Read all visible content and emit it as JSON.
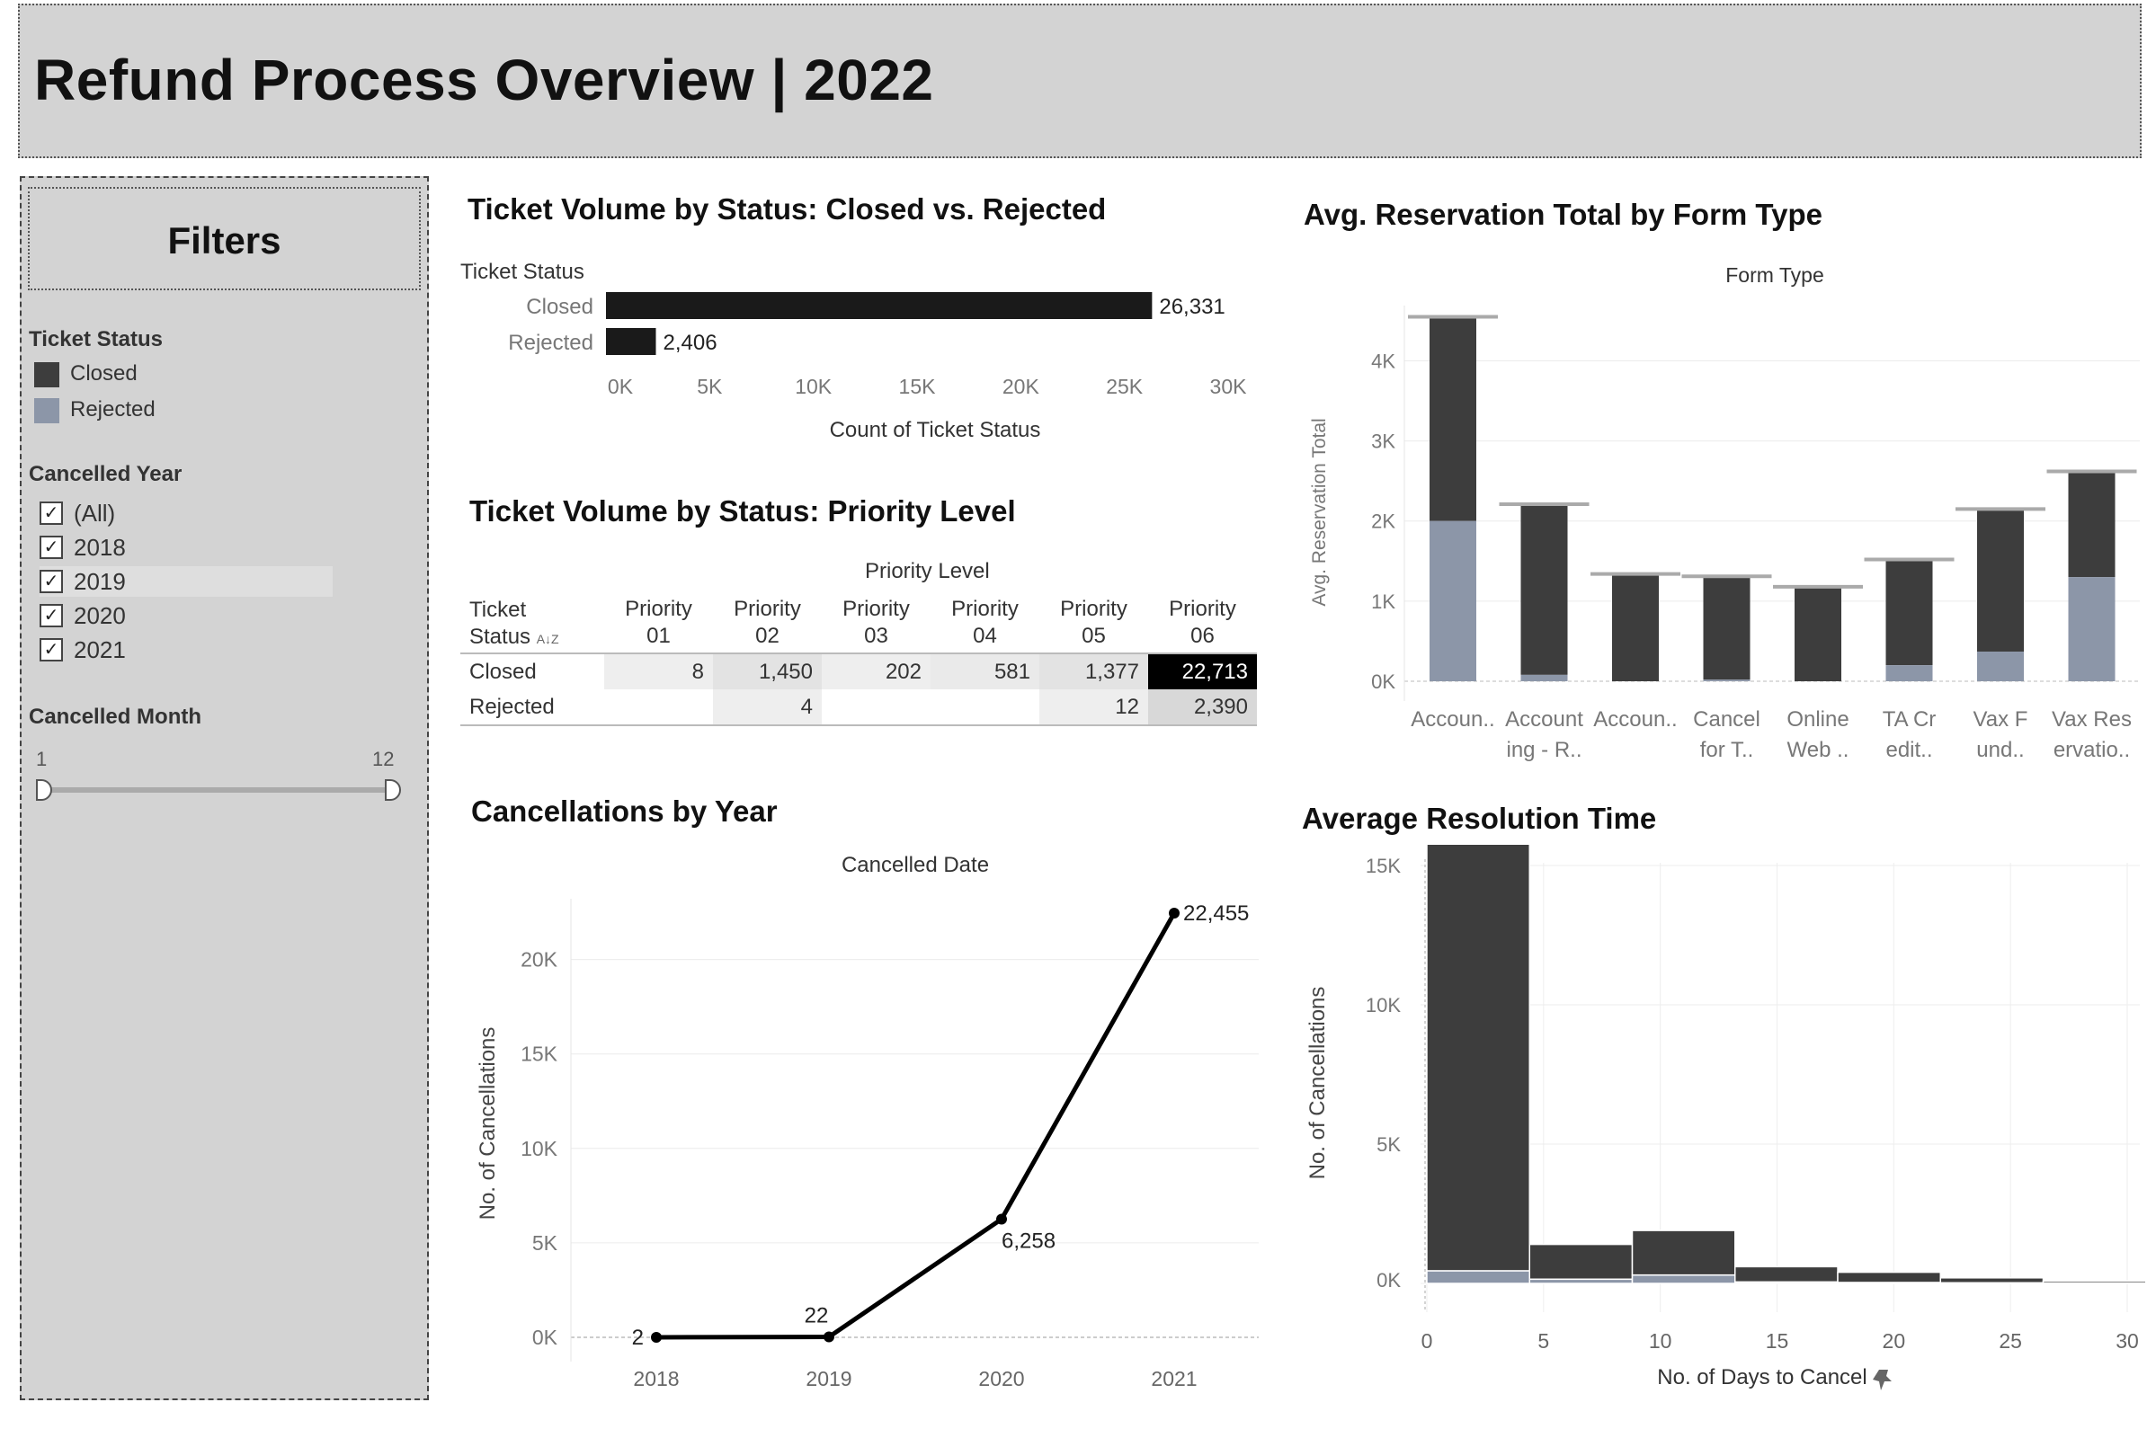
{
  "header": {
    "title": "Refund Process Overview | 2022"
  },
  "filters": {
    "title": "Filters",
    "ticket_status_label": "Ticket Status",
    "legend": [
      {
        "label": "Closed",
        "color": "#3d3d3d"
      },
      {
        "label": "Rejected",
        "color": "#8c96a8"
      }
    ],
    "cancelled_year_label": "Cancelled Year",
    "years": [
      "(All)",
      "2018",
      "2019",
      "2020",
      "2021"
    ],
    "cancelled_month_label": "Cancelled Month",
    "month_min": "1",
    "month_max": "12"
  },
  "sheets": {
    "status_bar_title": "Ticket Volume by Status: Closed vs. Rejected",
    "priority_title": "Ticket Volume by Status: Priority Level",
    "year_title": "Cancellations by Year",
    "form_title": "Avg. Reservation Total by Form Type",
    "resolution_title": "Average Resolution Time"
  },
  "priority_table": {
    "col_header": "Priority Level",
    "row_header": [
      "Ticket",
      "Status"
    ],
    "columns": [
      [
        "Priority",
        "01"
      ],
      [
        "Priority",
        "02"
      ],
      [
        "Priority",
        "03"
      ],
      [
        "Priority",
        "04"
      ],
      [
        "Priority",
        "05"
      ],
      [
        "Priority",
        "06"
      ]
    ],
    "rows": [
      {
        "label": "Closed",
        "values": [
          "8",
          "1,450",
          "202",
          "581",
          "1,377",
          "22,713"
        ]
      },
      {
        "label": "Rejected",
        "values": [
          "",
          "4",
          "",
          "",
          "12",
          "2,390"
        ]
      }
    ]
  },
  "chart_data": [
    {
      "type": "bar",
      "orientation": "horizontal",
      "title": "Ticket Volume by Status: Closed vs. Rejected",
      "ylabel": "Ticket Status",
      "xlabel": "Count of Ticket Status",
      "categories": [
        "Closed",
        "Rejected"
      ],
      "values": [
        26331,
        2406
      ],
      "labels": [
        "26,331",
        "2,406"
      ],
      "xlim": [
        0,
        30000
      ],
      "xticks": [
        "0K",
        "5K",
        "10K",
        "15K",
        "20K",
        "25K",
        "30K"
      ],
      "color": "#1a1a1a"
    },
    {
      "type": "line",
      "title": "Cancellations by Year",
      "header": "Cancelled Date",
      "ylabel": "No. of Cancellations",
      "x": [
        "2018",
        "2019",
        "2020",
        "2021"
      ],
      "y": [
        2,
        22,
        6258,
        22455
      ],
      "labels": [
        "2",
        "22",
        "6,258",
        "22,455"
      ],
      "ylim": [
        0,
        22455
      ],
      "yticks": [
        "0K",
        "5K",
        "10K",
        "15K",
        "20K"
      ]
    },
    {
      "type": "bar",
      "stacked": true,
      "title": "Avg. Reservation Total by Form Type",
      "header": "Form Type",
      "ylabel": "Avg. Reservation Total",
      "categories": [
        [
          "Accoun.."
        ],
        [
          "Account",
          "ing - R.."
        ],
        [
          "Accoun.."
        ],
        [
          "Cancel",
          "for T.."
        ],
        [
          "Online",
          "Web .."
        ],
        [
          "TA Cr",
          "edit.."
        ],
        [
          "Vax F",
          "und.."
        ],
        [
          "Vax Res",
          "ervatio.."
        ]
      ],
      "series": [
        {
          "name": "Rejected",
          "values": [
            2000,
            80,
            0,
            20,
            0,
            200,
            370,
            1300
          ]
        },
        {
          "name": "Closed",
          "values": [
            2550,
            2130,
            1340,
            1290,
            1180,
            1320,
            1780,
            1320
          ]
        }
      ],
      "reference": [
        4550,
        2210,
        1340,
        1310,
        1180,
        1520,
        2150,
        2620
      ],
      "ylim": [
        0,
        4600
      ],
      "yticks": [
        "0K",
        "1K",
        "2K",
        "3K",
        "4K"
      ]
    },
    {
      "type": "bar",
      "stacked": true,
      "histogram": true,
      "title": "Average Resolution Time",
      "ylabel": "No. of Cancellations",
      "xlabel": "No. of Days to Cancel",
      "bins": [
        [
          0,
          4.4
        ],
        [
          4.4,
          8.8
        ],
        [
          8.8,
          13.2
        ],
        [
          13.2,
          17.6
        ],
        [
          17.6,
          22
        ],
        [
          22,
          26.4
        ],
        [
          26.4,
          30.8
        ]
      ],
      "series": [
        {
          "name": "Rejected",
          "values": [
            450,
            150,
            300,
            50,
            30,
            20,
            10
          ]
        },
        {
          "name": "Closed",
          "values": [
            15550,
            1250,
            1600,
            550,
            370,
            180,
            70
          ]
        }
      ],
      "xlim": [
        0,
        31
      ],
      "xticks": [
        "0",
        "5",
        "10",
        "15",
        "20",
        "25",
        "30"
      ],
      "ylim": [
        -650,
        16700
      ],
      "yticks": [
        "0K",
        "5K",
        "10K",
        "15K"
      ]
    }
  ]
}
